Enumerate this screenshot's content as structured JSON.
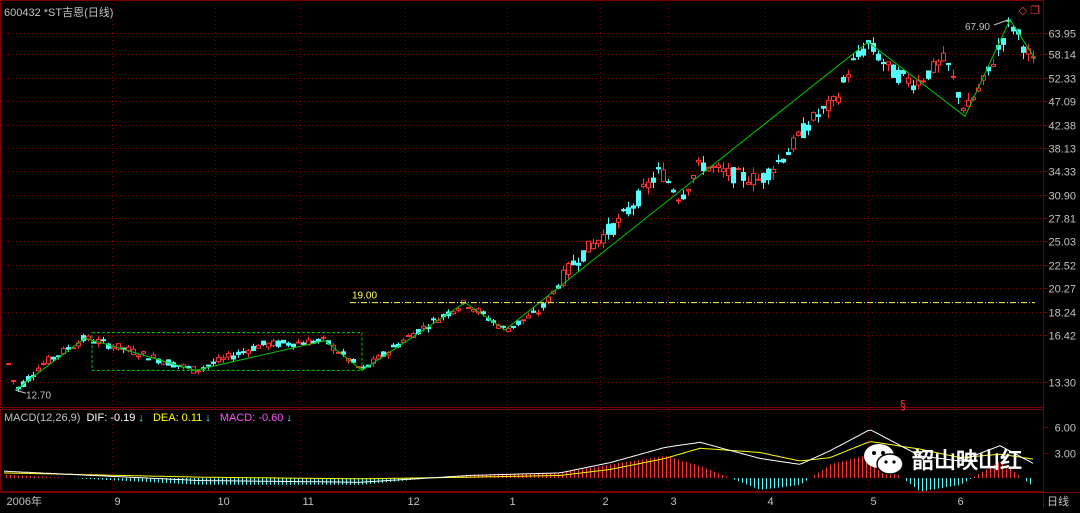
{
  "header": {
    "title": "600432 *ST吉恩(日线)"
  },
  "macd": {
    "label": "MACD(12,26,9)",
    "dif_label": "DIF: -0.19",
    "dea_label": "DEA: 0.11",
    "macd_label": "MACD: -0.60",
    "arrow": "↓",
    "ticks": [
      "6.00",
      "3.00"
    ]
  },
  "price_axis": {
    "ticks": [
      "63.95",
      "58.14",
      "52.33",
      "47.09",
      "42.38",
      "38.13",
      "34.33",
      "30.90",
      "27.81",
      "25.03",
      "22.52",
      "20.27",
      "18.24",
      "16.42",
      "13.30"
    ]
  },
  "time_axis": {
    "labels": [
      "2006年",
      "9",
      "10",
      "11",
      "12",
      "1",
      "2",
      "3",
      "4",
      "5",
      "6"
    ],
    "period_label": "日线"
  },
  "annotations": {
    "low": "12.70",
    "high": "67.90",
    "level": "19.00",
    "marker": "§"
  },
  "watermark": {
    "text": "韶山映山红"
  },
  "colors": {
    "up": "#ff3232",
    "down": "#54fcfc",
    "grid": "#7a0000",
    "zigzag": "#00c800",
    "level": "#ffff50",
    "dif": "#ffffff",
    "dea": "#ffff00",
    "macd_label": "#ff50ff"
  }
}
